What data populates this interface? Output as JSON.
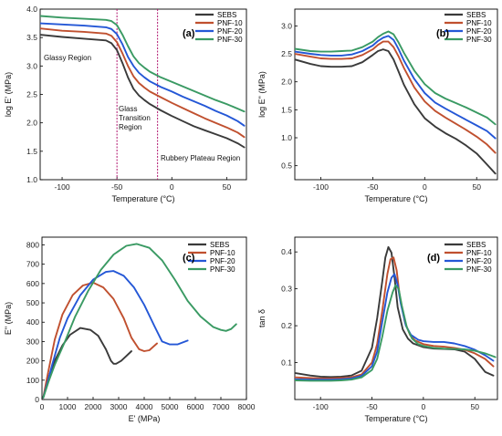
{
  "colors": {
    "SEBS": "#3a3a3a",
    "PNF-10": "#c0502f",
    "PNF-20": "#2457d6",
    "PNF-30": "#3a9a63",
    "region_line": "#b0156e"
  },
  "chart_data": [
    {
      "panel": "(a)",
      "type": "line",
      "title": "",
      "xlabel": "Temperature (°C)",
      "ylabel": "log E' (MPa)",
      "xlim": [
        -120,
        68
      ],
      "ylim": [
        1.0,
        4.0
      ],
      "xticks": [
        -100,
        -50,
        0,
        50
      ],
      "yticks": [
        1.0,
        1.5,
        2.0,
        2.5,
        3.0,
        3.5,
        4.0
      ],
      "legend_position": "top-right",
      "vertical_lines": [
        -50,
        -13
      ],
      "annotations": [
        "Glassy Region",
        "Glass Transition Region",
        "Rubbery Plateau Region"
      ],
      "series": [
        {
          "name": "SEBS",
          "x": [
            -120,
            -100,
            -80,
            -60,
            -55,
            -50,
            -45,
            -40,
            -35,
            -30,
            -25,
            -20,
            -10,
            0,
            10,
            20,
            30,
            40,
            50,
            60,
            66
          ],
          "y": [
            3.55,
            3.51,
            3.48,
            3.45,
            3.4,
            3.28,
            3.05,
            2.8,
            2.6,
            2.48,
            2.4,
            2.33,
            2.22,
            2.12,
            2.03,
            1.94,
            1.87,
            1.8,
            1.73,
            1.64,
            1.57
          ]
        },
        {
          "name": "PNF-10",
          "x": [
            -120,
            -100,
            -80,
            -60,
            -55,
            -50,
            -45,
            -40,
            -35,
            -30,
            -25,
            -20,
            -10,
            0,
            10,
            20,
            30,
            40,
            50,
            60,
            66
          ],
          "y": [
            3.66,
            3.62,
            3.6,
            3.57,
            3.53,
            3.42,
            3.22,
            3.0,
            2.82,
            2.7,
            2.62,
            2.55,
            2.45,
            2.35,
            2.26,
            2.17,
            2.08,
            2.0,
            1.92,
            1.83,
            1.75
          ]
        },
        {
          "name": "PNF-20",
          "x": [
            -120,
            -100,
            -80,
            -60,
            -55,
            -50,
            -45,
            -40,
            -35,
            -30,
            -25,
            -20,
            -10,
            0,
            10,
            20,
            30,
            40,
            50,
            60,
            66
          ],
          "y": [
            3.75,
            3.73,
            3.71,
            3.68,
            3.65,
            3.56,
            3.38,
            3.16,
            3.0,
            2.88,
            2.8,
            2.73,
            2.63,
            2.55,
            2.46,
            2.38,
            2.3,
            2.21,
            2.13,
            2.03,
            1.95
          ]
        },
        {
          "name": "PNF-30",
          "x": [
            -120,
            -100,
            -80,
            -60,
            -55,
            -50,
            -45,
            -40,
            -35,
            -30,
            -25,
            -20,
            -10,
            0,
            10,
            20,
            30,
            40,
            50,
            60,
            66
          ],
          "y": [
            3.88,
            3.85,
            3.83,
            3.81,
            3.79,
            3.72,
            3.55,
            3.35,
            3.17,
            3.05,
            2.97,
            2.9,
            2.8,
            2.72,
            2.64,
            2.56,
            2.48,
            2.4,
            2.33,
            2.25,
            2.2
          ]
        }
      ]
    },
    {
      "panel": "(b)",
      "type": "line",
      "title": "",
      "xlabel": "Temperature (°C)",
      "ylabel": "log E\" (MPa)",
      "xlim": [
        -125,
        70
      ],
      "ylim": [
        0.25,
        3.3
      ],
      "xticks": [
        -100,
        -50,
        0,
        50
      ],
      "yticks": [
        0.5,
        1.0,
        1.5,
        2.0,
        2.5,
        3.0
      ],
      "legend_position": "top-right",
      "series": [
        {
          "name": "SEBS",
          "x": [
            -125,
            -110,
            -100,
            -90,
            -80,
            -70,
            -60,
            -50,
            -45,
            -40,
            -35,
            -30,
            -25,
            -20,
            -10,
            0,
            10,
            20,
            30,
            40,
            50,
            60,
            68
          ],
          "y": [
            2.4,
            2.32,
            2.28,
            2.27,
            2.27,
            2.28,
            2.35,
            2.48,
            2.55,
            2.58,
            2.55,
            2.4,
            2.18,
            1.95,
            1.6,
            1.35,
            1.2,
            1.08,
            0.98,
            0.86,
            0.72,
            0.52,
            0.36
          ]
        },
        {
          "name": "PNF-10",
          "x": [
            -125,
            -110,
            -100,
            -90,
            -80,
            -70,
            -60,
            -50,
            -45,
            -40,
            -35,
            -30,
            -25,
            -20,
            -10,
            0,
            10,
            20,
            30,
            40,
            50,
            60,
            68
          ],
          "y": [
            2.5,
            2.45,
            2.42,
            2.41,
            2.41,
            2.42,
            2.48,
            2.58,
            2.66,
            2.72,
            2.72,
            2.62,
            2.45,
            2.25,
            1.9,
            1.65,
            1.48,
            1.36,
            1.25,
            1.14,
            1.02,
            0.88,
            0.73
          ]
        },
        {
          "name": "PNF-20",
          "x": [
            -125,
            -110,
            -100,
            -90,
            -80,
            -70,
            -60,
            -50,
            -45,
            -40,
            -35,
            -30,
            -25,
            -20,
            -10,
            0,
            10,
            20,
            30,
            40,
            50,
            60,
            68
          ],
          "y": [
            2.54,
            2.5,
            2.48,
            2.47,
            2.47,
            2.49,
            2.55,
            2.65,
            2.73,
            2.79,
            2.82,
            2.75,
            2.58,
            2.38,
            2.05,
            1.8,
            1.63,
            1.52,
            1.42,
            1.32,
            1.22,
            1.12,
            0.99
          ]
        },
        {
          "name": "PNF-30",
          "x": [
            -125,
            -110,
            -100,
            -90,
            -80,
            -70,
            -60,
            -50,
            -45,
            -40,
            -35,
            -30,
            -25,
            -20,
            -10,
            0,
            10,
            20,
            30,
            40,
            50,
            60,
            68
          ],
          "y": [
            2.59,
            2.55,
            2.54,
            2.54,
            2.55,
            2.56,
            2.62,
            2.72,
            2.8,
            2.86,
            2.9,
            2.85,
            2.7,
            2.52,
            2.2,
            1.96,
            1.8,
            1.7,
            1.62,
            1.54,
            1.45,
            1.36,
            1.24
          ]
        }
      ]
    },
    {
      "panel": "(c)",
      "type": "line",
      "title": "",
      "xlabel": "E' (MPa)",
      "ylabel": "E\" (MPa)",
      "xlim": [
        0,
        8000
      ],
      "ylim": [
        0,
        840
      ],
      "xticks": [
        0,
        1000,
        2000,
        3000,
        4000,
        5000,
        6000,
        7000,
        8000
      ],
      "yticks": [
        0,
        100,
        200,
        300,
        400,
        500,
        600,
        700,
        800
      ],
      "legend_position": "top-right",
      "series": [
        {
          "name": "SEBS",
          "x": [
            50,
            150,
            300,
            500,
            800,
            1100,
            1500,
            1900,
            2200,
            2500,
            2700,
            2800,
            2900,
            3100,
            3300,
            3500
          ],
          "y": [
            10,
            60,
            130,
            200,
            280,
            335,
            370,
            360,
            330,
            260,
            200,
            185,
            185,
            200,
            225,
            250
          ]
        },
        {
          "name": "PNF-10",
          "x": [
            50,
            150,
            300,
            500,
            800,
            1200,
            1600,
            2000,
            2400,
            2800,
            3200,
            3500,
            3800,
            4000,
            4200,
            4500
          ],
          "y": [
            10,
            80,
            180,
            310,
            440,
            540,
            590,
            605,
            580,
            520,
            420,
            320,
            260,
            250,
            255,
            290
          ]
        },
        {
          "name": "PNF-20",
          "x": [
            50,
            200,
            400,
            700,
            1000,
            1500,
            2000,
            2500,
            2800,
            3200,
            3600,
            4000,
            4400,
            4700,
            5000,
            5300,
            5700
          ],
          "y": [
            10,
            80,
            180,
            320,
            420,
            540,
            620,
            660,
            665,
            640,
            580,
            490,
            380,
            300,
            285,
            285,
            305
          ]
        },
        {
          "name": "PNF-30",
          "x": [
            50,
            250,
            500,
            900,
            1300,
            1800,
            2300,
            2800,
            3300,
            3700,
            4200,
            4700,
            5200,
            5700,
            6200,
            6700,
            7000,
            7200,
            7400,
            7600
          ],
          "y": [
            10,
            90,
            180,
            300,
            430,
            560,
            670,
            750,
            795,
            805,
            785,
            720,
            620,
            510,
            430,
            375,
            360,
            355,
            365,
            390
          ]
        }
      ]
    },
    {
      "panel": "(d)",
      "type": "line",
      "title": "",
      "xlabel": "Temperature (°C)",
      "ylabel": "tan δ",
      "xlim": [
        -125,
        72
      ],
      "ylim": [
        0.0,
        0.44
      ],
      "xticks": [
        -100,
        -50,
        0,
        50
      ],
      "yticks": [
        0.1,
        0.2,
        0.3,
        0.4
      ],
      "legend_position": "top-right",
      "series": [
        {
          "name": "SEBS",
          "x": [
            -125,
            -110,
            -100,
            -90,
            -80,
            -70,
            -60,
            -50,
            -45,
            -40,
            -37,
            -34,
            -31,
            -28,
            -25,
            -20,
            -15,
            -10,
            0,
            10,
            20,
            30,
            40,
            50,
            60,
            68
          ],
          "y": [
            0.072,
            0.065,
            0.062,
            0.061,
            0.062,
            0.065,
            0.078,
            0.14,
            0.22,
            0.32,
            0.385,
            0.413,
            0.398,
            0.33,
            0.25,
            0.19,
            0.165,
            0.152,
            0.142,
            0.138,
            0.137,
            0.136,
            0.13,
            0.11,
            0.075,
            0.065
          ]
        },
        {
          "name": "PNF-10",
          "x": [
            -125,
            -110,
            -100,
            -90,
            -80,
            -70,
            -60,
            -50,
            -45,
            -40,
            -35,
            -32,
            -29,
            -26,
            -23,
            -18,
            -13,
            -8,
            0,
            10,
            20,
            30,
            40,
            50,
            60,
            68
          ],
          "y": [
            0.06,
            0.058,
            0.057,
            0.057,
            0.058,
            0.06,
            0.068,
            0.1,
            0.15,
            0.24,
            0.34,
            0.38,
            0.385,
            0.35,
            0.28,
            0.21,
            0.175,
            0.16,
            0.15,
            0.145,
            0.143,
            0.14,
            0.135,
            0.125,
            0.11,
            0.09
          ]
        },
        {
          "name": "PNF-20",
          "x": [
            -125,
            -110,
            -100,
            -90,
            -80,
            -70,
            -60,
            -50,
            -45,
            -40,
            -35,
            -31,
            -28,
            -25,
            -22,
            -17,
            -12,
            -5,
            0,
            10,
            20,
            30,
            40,
            50,
            60,
            68
          ],
          "y": [
            0.055,
            0.054,
            0.054,
            0.054,
            0.055,
            0.057,
            0.064,
            0.09,
            0.13,
            0.21,
            0.29,
            0.33,
            0.34,
            0.31,
            0.26,
            0.2,
            0.175,
            0.162,
            0.158,
            0.156,
            0.156,
            0.152,
            0.145,
            0.135,
            0.12,
            0.105
          ]
        },
        {
          "name": "PNF-30",
          "x": [
            -125,
            -110,
            -100,
            -90,
            -80,
            -70,
            -60,
            -50,
            -45,
            -40,
            -35,
            -30,
            -27,
            -24,
            -21,
            -16,
            -11,
            -5,
            0,
            10,
            20,
            30,
            40,
            50,
            60,
            70
          ],
          "y": [
            0.052,
            0.051,
            0.051,
            0.051,
            0.052,
            0.054,
            0.06,
            0.08,
            0.11,
            0.17,
            0.24,
            0.29,
            0.31,
            0.3,
            0.255,
            0.195,
            0.165,
            0.15,
            0.145,
            0.14,
            0.138,
            0.137,
            0.136,
            0.132,
            0.125,
            0.115
          ]
        }
      ]
    }
  ]
}
